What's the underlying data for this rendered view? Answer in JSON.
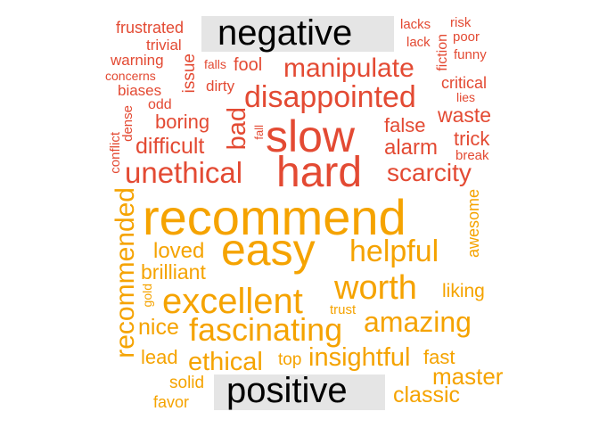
{
  "colors": {
    "negative": "#e34a33",
    "positive": "#f5a300",
    "label_bg": "#e5e5e5",
    "label_text": "#000000"
  },
  "labels": {
    "negative": "negative",
    "positive": "positive"
  },
  "negative_words": [
    "frustrated",
    "trivial",
    "warning",
    "concerns",
    "biases",
    "odd",
    "issue",
    "falls",
    "fool",
    "dirty",
    "lacks",
    "lack",
    "risk",
    "poor",
    "fiction",
    "funny",
    "critical",
    "lies",
    "manipulate",
    "disappointed",
    "bad",
    "boring",
    "slow",
    "false",
    "waste",
    "conflict",
    "dense",
    "fall",
    "difficult",
    "alarm",
    "trick",
    "break",
    "unethical",
    "hard",
    "scarcity"
  ],
  "positive_words": [
    "recommend",
    "awesome",
    "recommended",
    "easy",
    "loved",
    "helpful",
    "brilliant",
    "gold",
    "worth",
    "liking",
    "excellent",
    "trust",
    "nice",
    "fascinating",
    "amazing",
    "lead",
    "ethical",
    "top",
    "insightful",
    "fast",
    "master",
    "solid",
    "favor",
    "classic"
  ]
}
